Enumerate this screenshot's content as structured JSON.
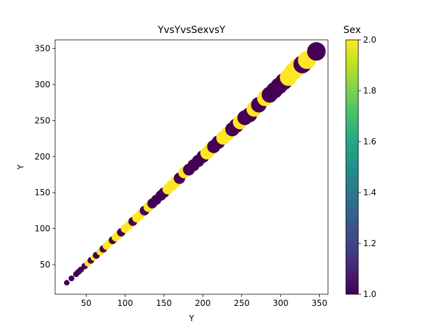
{
  "chart_data": {
    "type": "scatter",
    "title": "YvsYvsSexvsY",
    "xlabel": "Y",
    "ylabel": "Y",
    "xlim": [
      10,
      361
    ],
    "ylim": [
      9,
      362
    ],
    "xticks": [
      50,
      100,
      150,
      200,
      250,
      300,
      350
    ],
    "yticks": [
      50,
      100,
      150,
      200,
      250,
      300,
      350
    ],
    "grid": false,
    "colorbar": {
      "label": "Sex",
      "range": [
        1.0,
        2.0
      ],
      "ticks": [
        "1.0",
        "1.2",
        "1.4",
        "1.6",
        "1.8",
        "2.0"
      ],
      "colormap": "viridis"
    },
    "points": [
      {
        "x": 25,
        "y": 25,
        "sex": 1
      },
      {
        "x": 31,
        "y": 31,
        "sex": 1
      },
      {
        "x": 37,
        "y": 37,
        "sex": 1
      },
      {
        "x": 40,
        "y": 40,
        "sex": 1
      },
      {
        "x": 43,
        "y": 43,
        "sex": 1
      },
      {
        "x": 48,
        "y": 48,
        "sex": 1
      },
      {
        "x": 52,
        "y": 52,
        "sex": 2
      },
      {
        "x": 56,
        "y": 56,
        "sex": 1
      },
      {
        "x": 60,
        "y": 60,
        "sex": 2
      },
      {
        "x": 63,
        "y": 63,
        "sex": 1
      },
      {
        "x": 68,
        "y": 68,
        "sex": 2
      },
      {
        "x": 72,
        "y": 72,
        "sex": 1
      },
      {
        "x": 76,
        "y": 76,
        "sex": 2
      },
      {
        "x": 80,
        "y": 80,
        "sex": 2
      },
      {
        "x": 84,
        "y": 84,
        "sex": 1
      },
      {
        "x": 88,
        "y": 88,
        "sex": 2
      },
      {
        "x": 92,
        "y": 92,
        "sex": 2
      },
      {
        "x": 95,
        "y": 95,
        "sex": 1
      },
      {
        "x": 100,
        "y": 100,
        "sex": 2
      },
      {
        "x": 105,
        "y": 105,
        "sex": 2
      },
      {
        "x": 110,
        "y": 110,
        "sex": 1
      },
      {
        "x": 115,
        "y": 115,
        "sex": 2
      },
      {
        "x": 120,
        "y": 120,
        "sex": 2
      },
      {
        "x": 125,
        "y": 125,
        "sex": 1
      },
      {
        "x": 130,
        "y": 130,
        "sex": 2
      },
      {
        "x": 135,
        "y": 135,
        "sex": 1
      },
      {
        "x": 140,
        "y": 140,
        "sex": 1
      },
      {
        "x": 146,
        "y": 146,
        "sex": 1
      },
      {
        "x": 150,
        "y": 150,
        "sex": 1
      },
      {
        "x": 155,
        "y": 155,
        "sex": 2
      },
      {
        "x": 160,
        "y": 160,
        "sex": 2
      },
      {
        "x": 165,
        "y": 165,
        "sex": 2
      },
      {
        "x": 170,
        "y": 170,
        "sex": 1
      },
      {
        "x": 176,
        "y": 178,
        "sex": 2
      },
      {
        "x": 182,
        "y": 182,
        "sex": 1
      },
      {
        "x": 188,
        "y": 188,
        "sex": 1
      },
      {
        "x": 194,
        "y": 194,
        "sex": 1
      },
      {
        "x": 200,
        "y": 200,
        "sex": 1
      },
      {
        "x": 205,
        "y": 205,
        "sex": 2
      },
      {
        "x": 210,
        "y": 210,
        "sex": 2
      },
      {
        "x": 214,
        "y": 214,
        "sex": 1
      },
      {
        "x": 220,
        "y": 220,
        "sex": 1
      },
      {
        "x": 226,
        "y": 226,
        "sex": 2
      },
      {
        "x": 232,
        "y": 232,
        "sex": 2
      },
      {
        "x": 238,
        "y": 238,
        "sex": 1
      },
      {
        "x": 243,
        "y": 243,
        "sex": 1
      },
      {
        "x": 248,
        "y": 248,
        "sex": 2
      },
      {
        "x": 254,
        "y": 254,
        "sex": 1
      },
      {
        "x": 260,
        "y": 258,
        "sex": 1
      },
      {
        "x": 266,
        "y": 266,
        "sex": 2
      },
      {
        "x": 272,
        "y": 272,
        "sex": 1
      },
      {
        "x": 280,
        "y": 281,
        "sex": 2
      },
      {
        "x": 286,
        "y": 286,
        "sex": 1
      },
      {
        "x": 292,
        "y": 292,
        "sex": 1
      },
      {
        "x": 298,
        "y": 298,
        "sex": 1
      },
      {
        "x": 304,
        "y": 304,
        "sex": 1
      },
      {
        "x": 310,
        "y": 310,
        "sex": 2
      },
      {
        "x": 316,
        "y": 318,
        "sex": 2
      },
      {
        "x": 322,
        "y": 324,
        "sex": 2
      },
      {
        "x": 328,
        "y": 328,
        "sex": 1
      },
      {
        "x": 334,
        "y": 334,
        "sex": 2
      },
      {
        "x": 346,
        "y": 346,
        "sex": 1
      }
    ],
    "colors": {
      "low": "#440154",
      "high": "#fde725"
    }
  }
}
